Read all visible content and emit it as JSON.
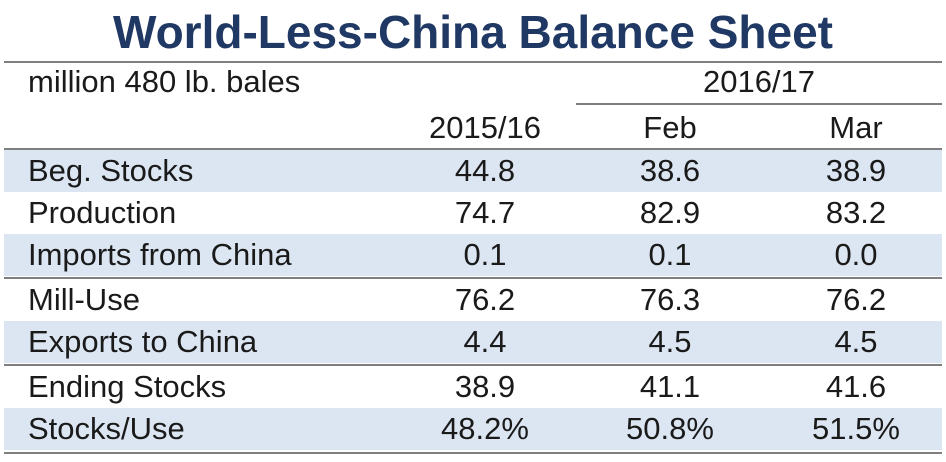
{
  "title": "World-Less-China Balance Sheet",
  "unit_label": "million 480 lb. bales",
  "header": {
    "group_label": "2016/17",
    "columns": [
      "2015/16",
      "Feb",
      "Mar"
    ]
  },
  "rows": [
    {
      "label": "Beg. Stocks",
      "values": [
        "44.8",
        "38.6",
        "38.9"
      ]
    },
    {
      "label": "Production",
      "values": [
        "74.7",
        "82.9",
        "83.2"
      ]
    },
    {
      "label": "Imports from China",
      "values": [
        "0.1",
        "0.1",
        "0.0"
      ]
    },
    {
      "label": "Mill-Use",
      "values": [
        "76.2",
        "76.3",
        "76.2"
      ]
    },
    {
      "label": "Exports to China",
      "values": [
        "4.4",
        "4.5",
        "4.5"
      ]
    },
    {
      "label": "Ending Stocks",
      "values": [
        "38.9",
        "41.1",
        "41.6"
      ]
    },
    {
      "label": "Stocks/Use",
      "values": [
        "48.2%",
        "50.8%",
        "51.5%"
      ]
    }
  ],
  "colors": {
    "title": "#1f3864",
    "row_shade": "#dce6f2",
    "rule": "#7f7f7f"
  }
}
